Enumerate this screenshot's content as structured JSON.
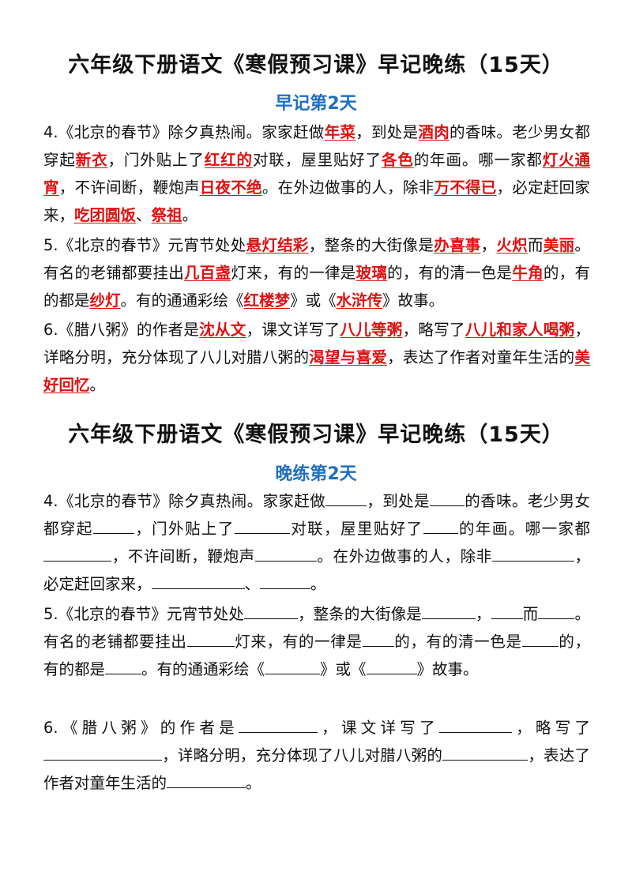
{
  "section1": {
    "title": "六年级下册语文《寒假预习课》早记晚练（15天）",
    "subtitle": "早记第2天",
    "p4": [
      "4.《北京的春节》除夕真热闹。家家赶做",
      "年菜",
      "，到处是",
      "酒肉",
      "的香味。老少男女都穿起",
      "新衣",
      "，门外贴上了",
      "红红的",
      "对联，屋里贴好了",
      "各色",
      "的年画。哪一家都",
      "灯火通宵",
      "，不许间断，鞭炮声",
      "日夜不绝",
      "。在外边做事的人，除非",
      "万不得已",
      "，必定赶回家来，",
      "吃团圆饭",
      "、",
      "祭祖",
      "。"
    ],
    "p5": [
      "5.《北京的春节》元宵节处处",
      "悬灯结彩",
      "，整条的大街像是",
      "办喜事",
      "，",
      "火炽",
      "而",
      "美丽",
      "。有名的老铺都要挂出",
      "几百盏",
      "灯来，有的一律是",
      "玻璃",
      "的，有的清一色是",
      "牛角",
      "的，有的都是",
      "纱灯",
      "。有的通通彩绘《",
      "红楼梦",
      "》或《",
      "水浒传",
      "》故事。"
    ],
    "p6": [
      "6.《腊八粥》的作者是",
      "沈从文",
      "，课文详写了",
      "八儿等粥",
      "，略写了",
      "八儿和家人喝粥",
      "，详略分明，充分体现了八儿对腊八粥的",
      "渴望与喜爱",
      "，表达了作者对童年生活的",
      "美好回忆",
      "。"
    ]
  },
  "section2": {
    "title": "六年级下册语文《寒假预习课》早记晚练（15天）",
    "subtitle": "晚练第2天",
    "p4": [
      "4.《北京的春节》除夕真热闹。家家赶做",
      "，到处是",
      "的香味。老少男女都穿起",
      "，门外贴上了",
      "对联，屋里贴好了",
      "的年画。哪一家都",
      "，不许间断，鞭炮声",
      "。在外边做事的人，除非",
      "，必定赶回家来，",
      "、",
      "。"
    ],
    "p5": [
      "5.《北京的春节》元宵节处处",
      "，整条的大街像是",
      "，",
      "而",
      "。有名的老铺都要挂出",
      "灯来，有的一律是",
      "的，有的清一色是",
      "的，有的都是",
      "。有的通通彩绘《",
      "》或《",
      "》故事。"
    ],
    "p6": [
      "6.《腊八粥》的作者是",
      "，课文详写了",
      "，略写了",
      "，详略分明，充分体现了八儿对腊八粥的",
      "，表达了作者对童年生活的",
      "。"
    ]
  }
}
